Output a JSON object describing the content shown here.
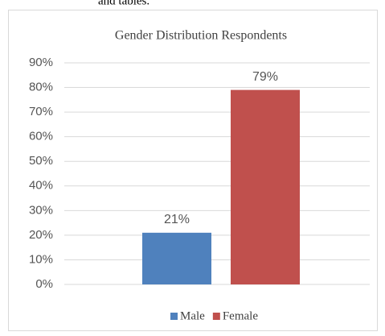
{
  "caption_fragment": "and tables.",
  "chart_data": {
    "type": "bar",
    "title": "Gender Distribution  Respondents",
    "categories": [
      null
    ],
    "series": [
      {
        "name": "Male",
        "color": "#4f81bd",
        "values": [
          21
        ],
        "value_labels": [
          "21%"
        ]
      },
      {
        "name": "Female",
        "color": "#c0504d",
        "values": [
          79
        ],
        "value_labels": [
          "79%"
        ]
      }
    ],
    "ylim": [
      0,
      90
    ],
    "yticks": [
      {
        "value": 0,
        "label": "0%"
      },
      {
        "value": 10,
        "label": "10%"
      },
      {
        "value": 20,
        "label": "20%"
      },
      {
        "value": 30,
        "label": "30%"
      },
      {
        "value": 40,
        "label": "40%"
      },
      {
        "value": 50,
        "label": "50%"
      },
      {
        "value": 60,
        "label": "60%"
      },
      {
        "value": 70,
        "label": "70%"
      },
      {
        "value": 80,
        "label": "80%"
      },
      {
        "value": 90,
        "label": "90%"
      }
    ],
    "grid": true,
    "legend": "bottom"
  }
}
